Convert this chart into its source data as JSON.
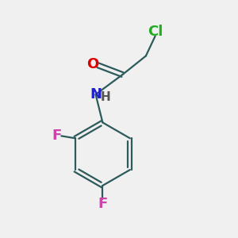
{
  "bg_color": "#f0f0f0",
  "bond_color": "#2d5a5a",
  "atom_colors": {
    "Cl": "#22aa22",
    "O": "#dd0000",
    "N": "#2222cc",
    "H": "#555555",
    "F2": "#cc44aa",
    "F4": "#cc44aa"
  },
  "font_size_atoms": 13,
  "font_size_h": 11,
  "lw": 1.6
}
